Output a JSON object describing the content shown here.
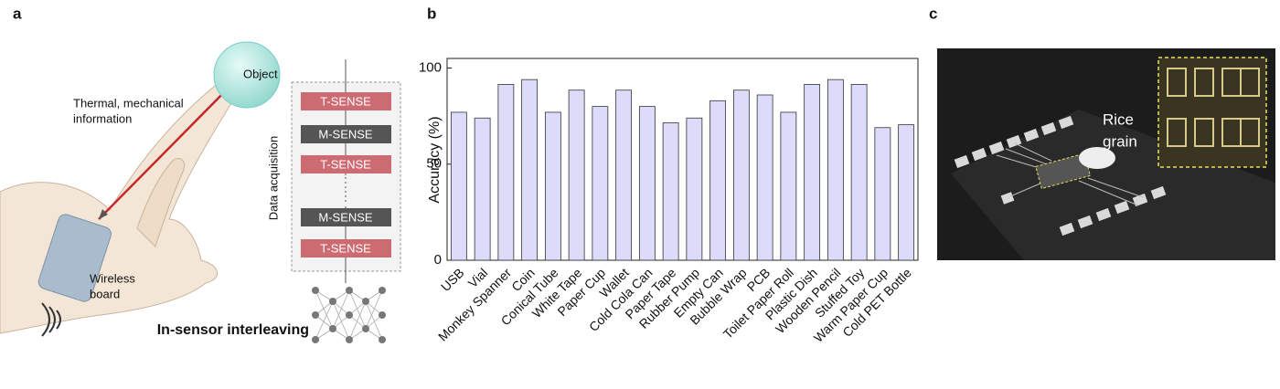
{
  "panel_labels": [
    "a",
    "b",
    "c"
  ],
  "panel_a": {
    "object": "Object",
    "info": [
      "Thermal, mechanical",
      "information"
    ],
    "board": [
      "Wireless",
      "board"
    ],
    "acquisition": "Data acquisition",
    "sequence": [
      {
        "label": "T-SENSE",
        "color": "#cd6b73"
      },
      {
        "label": "M-SENSE",
        "color": "#555555"
      },
      {
        "label": "T-SENSE",
        "color": "#cd6b73"
      },
      {
        "label": "M-SENSE",
        "color": "#555555"
      },
      {
        "label": "T-SENSE",
        "color": "#cd6b73"
      }
    ],
    "caption": "In-sensor interleaving"
  },
  "chart_data": {
    "type": "bar",
    "y_label": "Accuracy (%)",
    "categories": [
      "USB",
      "Vial",
      "Monkey Spanner",
      "Coin",
      "Conical Tube",
      "White Tape",
      "Paper Cup",
      "Wallet",
      "Cold Cola Can",
      "Paper Tape",
      "Rubber Pump",
      "Empty Can",
      "Bubble Wrap",
      "PCB",
      "Toilet Paper Roll",
      "Plastic Dish",
      "Wooden Pencil",
      "Stuffed Toy",
      "Warm Paper Cup",
      "Cold PET Bottle"
    ],
    "values": [
      77,
      74,
      91.5,
      94,
      77,
      88.5,
      80,
      88.5,
      80,
      71.5,
      74,
      83,
      88.5,
      86,
      77,
      91.5,
      94,
      91.5,
      69,
      70.5
    ],
    "color": "#dcdcfa",
    "ylim": [
      0,
      105
    ],
    "yticks": [
      0,
      50,
      100
    ]
  },
  "panel_c": {
    "annotation": [
      "Rice",
      "grain"
    ]
  }
}
